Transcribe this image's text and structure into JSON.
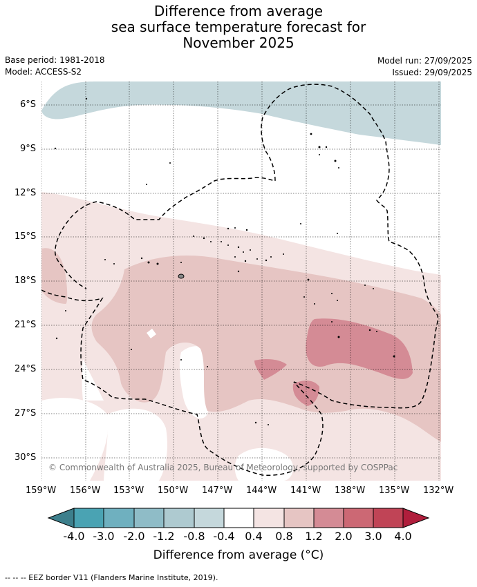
{
  "title": {
    "line1": "Difference from average",
    "line2": "sea surface temperature forecast for",
    "line3": "November 2025"
  },
  "meta": {
    "base_period": "Base period: 1981-2018",
    "model": "Model: ACCESS-S2",
    "model_run": "Model run: 27/09/2025",
    "issued": "Issued: 29/09/2025"
  },
  "map": {
    "lat_ticks": [
      "6°S",
      "9°S",
      "12°S",
      "15°S",
      "18°S",
      "21°S",
      "24°S",
      "27°S",
      "30°S"
    ],
    "lon_ticks": [
      "159°W",
      "156°W",
      "153°W",
      "150°W",
      "147°W",
      "144°W",
      "141°W",
      "138°W",
      "135°W",
      "132°W"
    ],
    "copyright": "© Commonwealth of Australia 2025, Bureau of Meteorology, supported by COSPPac"
  },
  "colorbar": {
    "labels": [
      "-4.0",
      "-3.0",
      "-2.0",
      "-1.2",
      "-0.8",
      "-0.4",
      "0.4",
      "0.8",
      "1.2",
      "2.0",
      "3.0",
      "4.0"
    ],
    "colors": {
      "under": "#3d7f8c",
      "c1": "#4aa3b3",
      "c2": "#6fb0bf",
      "c3": "#8fbcc7",
      "c4": "#aecad0",
      "c5": "#c5d8dc",
      "c6": "#ffffff",
      "c7": "#f4e4e3",
      "c8": "#e6c5c3",
      "c9": "#d48b95",
      "c10": "#cc6874",
      "c11": "#c04456",
      "over": "#b01e3c"
    },
    "axis_label": "Difference from average (°C)"
  },
  "footer": "-- -- -- EEZ border V11 (Flanders Marine Institute, 2019)."
}
